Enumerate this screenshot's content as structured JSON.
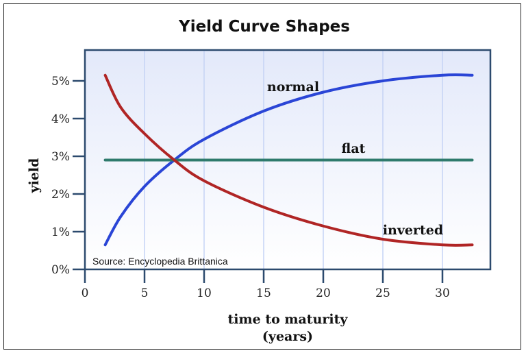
{
  "chart_data": {
    "type": "line",
    "title": "Yield Curve Shapes",
    "xlabel": "time to maturity",
    "xlabel_unit": "(years)",
    "ylabel": "yield",
    "xlim": [
      0,
      34
    ],
    "ylim": [
      0,
      5.8
    ],
    "x_ticks": [
      "0",
      "5",
      "10",
      "15",
      "20",
      "25",
      "30"
    ],
    "x_tick_values": [
      0,
      5,
      10,
      15,
      20,
      25,
      30
    ],
    "y_ticks": [
      "0%",
      "1%",
      "2%",
      "3%",
      "4%",
      "5%"
    ],
    "y_tick_values": [
      0,
      1,
      2,
      3,
      4,
      5
    ],
    "grid": "vertical",
    "source": "Source: Encyclopedia Brittanica",
    "series": [
      {
        "name": "normal",
        "color": "#2a45d6",
        "x": [
          1.7,
          3,
          5,
          7.5,
          10,
          15,
          20,
          25,
          30,
          32.5
        ],
        "values": [
          0.65,
          1.4,
          2.2,
          2.9,
          3.45,
          4.2,
          4.7,
          5.0,
          5.15,
          5.15
        ]
      },
      {
        "name": "flat",
        "color": "#2e7a6c",
        "x": [
          1.7,
          32.5
        ],
        "values": [
          2.9,
          2.9
        ]
      },
      {
        "name": "inverted",
        "color": "#b02525",
        "x": [
          1.7,
          3,
          5,
          7.5,
          10,
          15,
          20,
          25,
          30,
          32.5
        ],
        "values": [
          5.15,
          4.3,
          3.6,
          2.9,
          2.35,
          1.65,
          1.15,
          0.8,
          0.65,
          0.65
        ]
      }
    ]
  }
}
